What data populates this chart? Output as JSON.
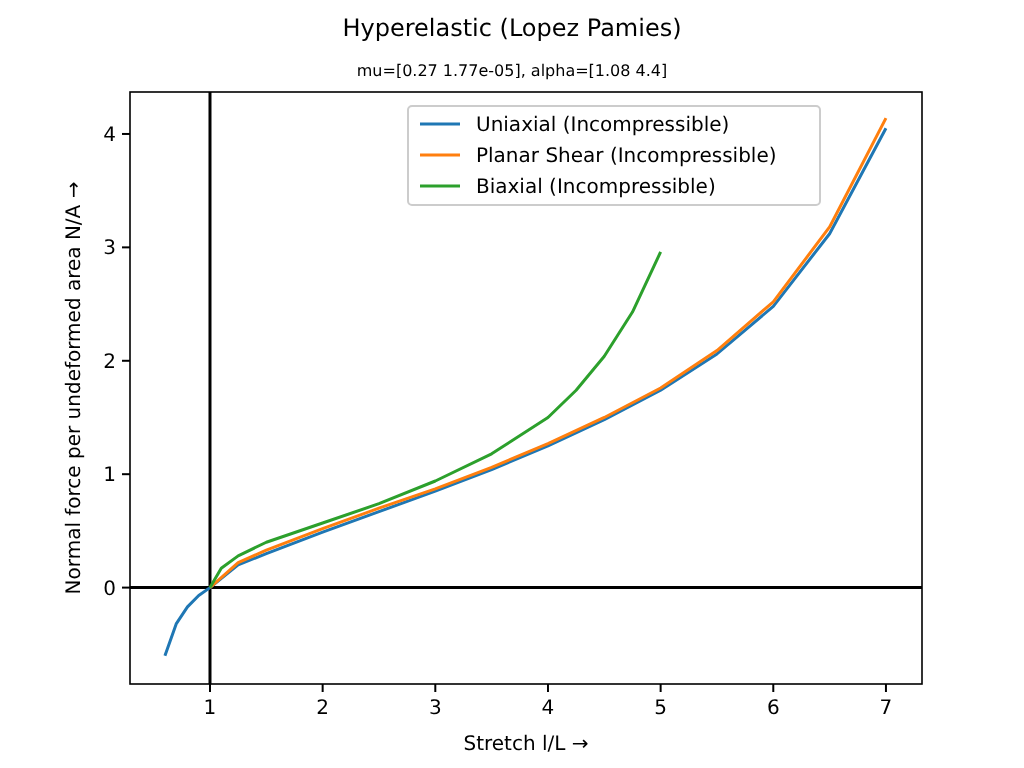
{
  "chart_data": {
    "type": "line",
    "title": "Hyperelastic (Lopez Pamies)",
    "subtitle": "mu=[0.27 1.77e-05], alpha=[1.08 4.4]",
    "xlabel": "Stretch l/L  →",
    "ylabel": "Normal force per undeformed area N/A  →",
    "xlim": [
      0.29,
      7.32
    ],
    "ylim": [
      -0.85,
      4.37
    ],
    "xticks": [
      1,
      2,
      3,
      4,
      5,
      6,
      7
    ],
    "yticks": [
      0,
      1,
      2,
      3,
      4
    ],
    "grid": false,
    "legend": "top",
    "marker": "none",
    "line_style": "solid",
    "ref_lines": [
      {
        "axis": "x",
        "value": 1,
        "color": "#000000"
      },
      {
        "axis": "y",
        "value": 0,
        "color": "#000000"
      }
    ],
    "series": [
      {
        "name": "Uniaxial (Incompressible)",
        "color": "#1f77b4",
        "x": [
          0.6,
          0.7,
          0.8,
          0.9,
          1,
          1.25,
          1.5,
          2,
          2.5,
          3,
          3.5,
          4,
          4.5,
          5,
          5.5,
          6,
          6.5,
          7
        ],
        "values": [
          -0.6,
          -0.32,
          -0.17,
          -0.07,
          0,
          0.2,
          0.3,
          0.49,
          0.67,
          0.85,
          1.04,
          1.25,
          1.48,
          1.74,
          2.06,
          2.48,
          3.12,
          4.05
        ]
      },
      {
        "name": "Planar Shear (Incompressible)",
        "color": "#ff7f0e",
        "x": [
          1,
          1.25,
          1.5,
          2,
          2.5,
          3,
          3.5,
          4,
          4.5,
          5,
          5.5,
          6,
          6.5,
          7
        ],
        "values": [
          0,
          0.22,
          0.33,
          0.52,
          0.7,
          0.87,
          1.06,
          1.27,
          1.5,
          1.76,
          2.09,
          2.52,
          3.18,
          4.14
        ]
      },
      {
        "name": "Biaxial (Incompressible)",
        "color": "#2ca02c",
        "x": [
          1,
          1.1,
          1.25,
          1.5,
          2,
          2.5,
          3,
          3.5,
          4,
          4.25,
          4.5,
          4.75,
          5
        ],
        "values": [
          0,
          0.17,
          0.28,
          0.4,
          0.57,
          0.74,
          0.94,
          1.18,
          1.5,
          1.74,
          2.04,
          2.43,
          2.96
        ]
      }
    ]
  }
}
